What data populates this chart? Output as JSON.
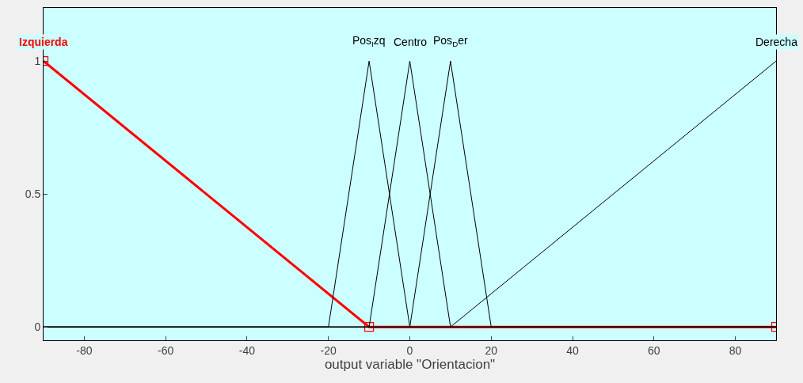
{
  "chart_data": {
    "type": "line",
    "xlabel": "output variable \"Orientacion\"",
    "xlim": [
      -90,
      90
    ],
    "xticks": [
      -80,
      -60,
      -40,
      -20,
      0,
      20,
      40,
      60,
      80
    ],
    "ylim": [
      -0.05,
      1.2
    ],
    "yticks": [
      0,
      0.5,
      1
    ],
    "grid": false,
    "legend": false,
    "series": [
      {
        "name": "Izquierda",
        "color": "#ff0000",
        "x": [
          -90,
          -10,
          90
        ],
        "values": [
          1,
          0,
          0
        ],
        "marker": "square"
      },
      {
        "name": "Pos$_{I}$zq",
        "color": "#000000",
        "x": [
          -90,
          -20,
          -10,
          0,
          90
        ],
        "values": [
          0,
          0,
          1,
          0,
          0
        ]
      },
      {
        "name": "Centro",
        "color": "#000000",
        "x": [
          -90,
          -10,
          0,
          10,
          90
        ],
        "values": [
          0,
          0,
          1,
          0,
          0
        ]
      },
      {
        "name": "Pos$_{D}$er",
        "color": "#000000",
        "x": [
          -90,
          0,
          10,
          20,
          90
        ],
        "values": [
          0,
          0,
          1,
          0,
          0
        ]
      },
      {
        "name": "Derecha",
        "color": "#000000",
        "x": [
          -90,
          10,
          90
        ],
        "values": [
          0,
          0,
          1
        ]
      }
    ]
  }
}
